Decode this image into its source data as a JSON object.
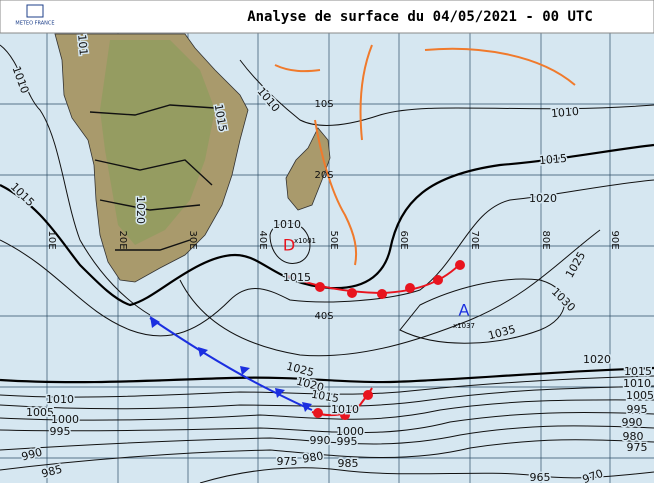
{
  "header": {
    "title": "Analyse de surface du 04/05/2021 - 00 UTC",
    "logo": "METEO FRANCE"
  },
  "meridians": [
    "10E",
    "20E",
    "30E",
    "40E",
    "50E",
    "60E",
    "70E",
    "80E",
    "90E"
  ],
  "parallels": [
    "10S",
    "20S",
    "40S"
  ],
  "centers": [
    {
      "symbol": "D",
      "value": "x1001"
    },
    {
      "symbol": "A",
      "value": "x1037"
    }
  ],
  "isobar_labels": [
    "1010",
    "101",
    "1015",
    "1010",
    "1010",
    "1015",
    "1015",
    "1020",
    "1020",
    "1025",
    "1030",
    "1010",
    "1015",
    "1035",
    "1020",
    "1015",
    "1025",
    "1020",
    "1015",
    "1010",
    "1005",
    "1000",
    "995",
    "990",
    "985",
    "1010",
    "1000",
    "995",
    "990",
    "985",
    "980",
    "975",
    "965",
    "970",
    "1010",
    "1005",
    "995",
    "990",
    "980",
    "975"
  ]
}
